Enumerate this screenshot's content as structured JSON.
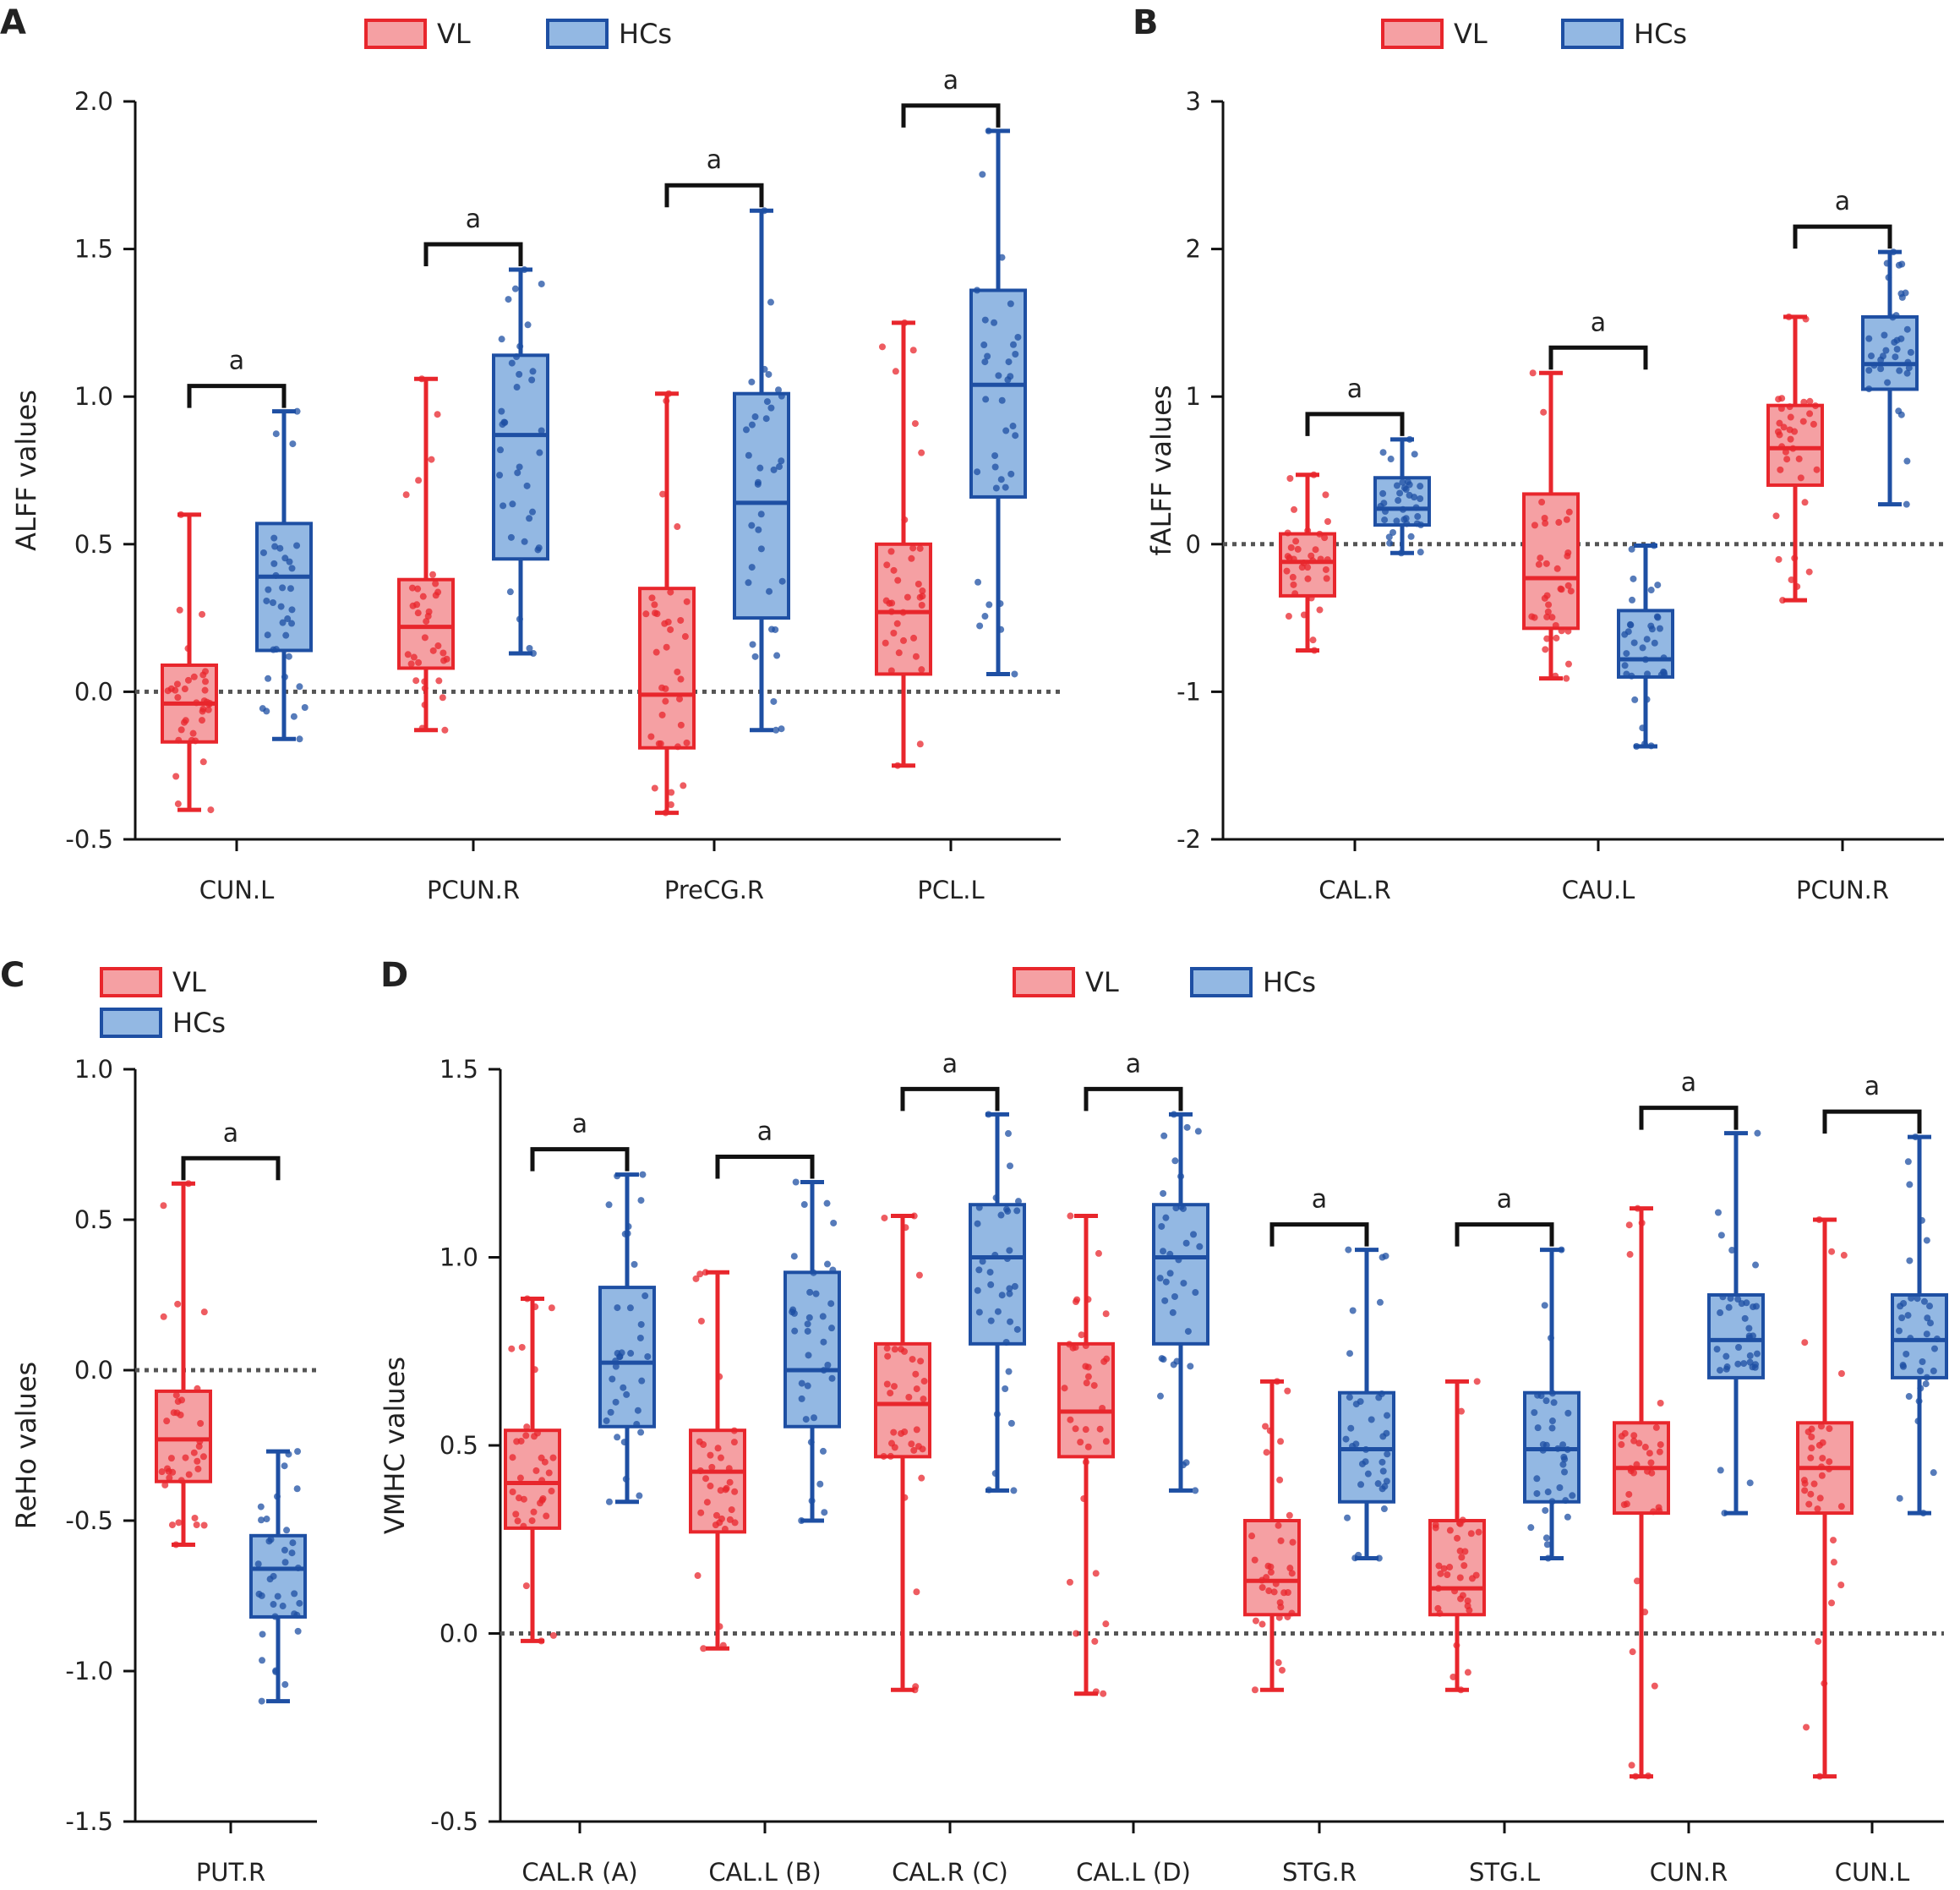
{
  "colors": {
    "vl_stroke": "#e8262c",
    "vl_fill": "#f5a0a3",
    "vl_point": "#e8262c",
    "hc_stroke": "#1e4fa3",
    "hc_fill": "#93b8e3",
    "hc_point": "#1e4fa3",
    "axis": "#111111",
    "zero_line": "#555555"
  },
  "chart_data": [
    {
      "panel": "A",
      "type": "box",
      "ylabel": "ALFF values",
      "ylim": [
        -0.5,
        2.0
      ],
      "yticks": [
        -0.5,
        0.0,
        0.5,
        1.0,
        1.5,
        2.0
      ],
      "ytick_labels": [
        "-0.5",
        "0.0",
        "0.5",
        "1.0",
        "1.5",
        "2.0"
      ],
      "zero_line": true,
      "legend": "top",
      "legend_labels": [
        "VL",
        "HCs"
      ],
      "series_names": [
        "VL",
        "HCs"
      ],
      "categories": [
        "CUN.L",
        "PCUN.R",
        "PreCG.R",
        "PCL.L"
      ],
      "significance": [
        "a",
        "a",
        "a",
        "a"
      ],
      "boxes": [
        [
          {
            "min": -0.4,
            "q1": -0.17,
            "median": -0.04,
            "q3": 0.09,
            "max": 0.6
          },
          {
            "min": -0.16,
            "q1": 0.14,
            "median": 0.39,
            "q3": 0.57,
            "max": 0.95
          }
        ],
        [
          {
            "min": -0.13,
            "q1": 0.08,
            "median": 0.22,
            "q3": 0.38,
            "max": 1.06
          },
          {
            "min": 0.13,
            "q1": 0.45,
            "median": 0.87,
            "q3": 1.14,
            "max": 1.43
          }
        ],
        [
          {
            "min": -0.41,
            "q1": -0.19,
            "median": -0.01,
            "q3": 0.35,
            "max": 1.01
          },
          {
            "min": -0.13,
            "q1": 0.25,
            "median": 0.64,
            "q3": 1.01,
            "max": 1.63
          }
        ],
        [
          {
            "min": -0.25,
            "q1": 0.06,
            "median": 0.27,
            "q3": 0.5,
            "max": 1.25
          },
          {
            "min": 0.06,
            "q1": 0.66,
            "median": 1.04,
            "q3": 1.36,
            "max": 1.9
          }
        ]
      ]
    },
    {
      "panel": "B",
      "type": "box",
      "ylabel": "fALFF values",
      "ylim": [
        -2,
        3
      ],
      "yticks": [
        -2,
        -1,
        0,
        1,
        2,
        3
      ],
      "ytick_labels": [
        "-2",
        "-1",
        "0",
        "1",
        "2",
        "3"
      ],
      "zero_line": true,
      "legend": "top",
      "legend_labels": [
        "VL",
        "HCs"
      ],
      "series_names": [
        "VL",
        "HCs"
      ],
      "categories": [
        "CAL.R",
        "CAU.L",
        "PCUN.R"
      ],
      "significance": [
        "a",
        "a",
        "a"
      ],
      "boxes": [
        [
          {
            "min": -0.72,
            "q1": -0.35,
            "median": -0.12,
            "q3": 0.07,
            "max": 0.47
          },
          {
            "min": -0.06,
            "q1": 0.13,
            "median": 0.24,
            "q3": 0.45,
            "max": 0.71
          }
        ],
        [
          {
            "min": -0.91,
            "q1": -0.57,
            "median": -0.23,
            "q3": 0.34,
            "max": 1.16
          },
          {
            "min": -1.37,
            "q1": -0.9,
            "median": -0.78,
            "q3": -0.45,
            "max": -0.01
          }
        ],
        [
          {
            "min": -0.38,
            "q1": 0.4,
            "median": 0.65,
            "q3": 0.94,
            "max": 1.54
          },
          {
            "min": 0.27,
            "q1": 1.05,
            "median": 1.22,
            "q3": 1.54,
            "max": 1.98
          }
        ]
      ]
    },
    {
      "panel": "C",
      "type": "box",
      "ylabel": "ReHo values",
      "ylim": [
        -1.5,
        1.0
      ],
      "yticks": [
        -1.5,
        -1.0,
        -0.5,
        0.0,
        0.5,
        1.0
      ],
      "ytick_labels": [
        "-1.5",
        "-1.0",
        "-0.5",
        "0.0",
        "0.5",
        "1.0"
      ],
      "zero_line": true,
      "legend": "top-left",
      "legend_labels": [
        "VL",
        "HCs"
      ],
      "series_names": [
        "VL",
        "HCs"
      ],
      "categories": [
        "PUT.R"
      ],
      "significance": [
        "a"
      ],
      "boxes": [
        [
          {
            "min": -0.58,
            "q1": -0.37,
            "median": -0.23,
            "q3": -0.07,
            "max": 0.62
          },
          {
            "min": -1.1,
            "q1": -0.82,
            "median": -0.66,
            "q3": -0.55,
            "max": -0.27
          }
        ]
      ]
    },
    {
      "panel": "D",
      "type": "box",
      "ylabel": "VMHC values",
      "ylim": [
        -0.5,
        1.5
      ],
      "yticks": [
        -0.5,
        0.0,
        0.5,
        1.0,
        1.5
      ],
      "ytick_labels": [
        "-0.5",
        "0.0",
        "0.5",
        "1.0",
        "1.5"
      ],
      "zero_line": true,
      "legend": "top",
      "legend_labels": [
        "VL",
        "HCs"
      ],
      "series_names": [
        "VL",
        "HCs"
      ],
      "categories": [
        "CAL.R (A)",
        "CAL.L (B)",
        "CAL.R (C)",
        "CAL.L (D)",
        "STG.R",
        "STG.L",
        "CUN.R",
        "CUN.L"
      ],
      "significance": [
        "a",
        "a",
        "a",
        "a",
        "a",
        "a",
        "a",
        "a"
      ],
      "boxes": [
        [
          {
            "min": -0.02,
            "q1": 0.28,
            "median": 0.4,
            "q3": 0.54,
            "max": 0.89
          },
          {
            "min": 0.35,
            "q1": 0.55,
            "median": 0.72,
            "q3": 0.92,
            "max": 1.22
          }
        ],
        [
          {
            "min": -0.04,
            "q1": 0.27,
            "median": 0.43,
            "q3": 0.54,
            "max": 0.96
          },
          {
            "min": 0.3,
            "q1": 0.55,
            "median": 0.7,
            "q3": 0.96,
            "max": 1.2
          }
        ],
        [
          {
            "min": -0.15,
            "q1": 0.47,
            "median": 0.61,
            "q3": 0.77,
            "max": 1.11
          },
          {
            "min": 0.38,
            "q1": 0.77,
            "median": 1.0,
            "q3": 1.14,
            "max": 1.38
          }
        ],
        [
          {
            "min": -0.16,
            "q1": 0.47,
            "median": 0.59,
            "q3": 0.77,
            "max": 1.11
          },
          {
            "min": 0.38,
            "q1": 0.77,
            "median": 1.0,
            "q3": 1.14,
            "max": 1.38
          }
        ],
        [
          {
            "min": -0.15,
            "q1": 0.05,
            "median": 0.14,
            "q3": 0.3,
            "max": 0.67
          },
          {
            "min": 0.2,
            "q1": 0.35,
            "median": 0.49,
            "q3": 0.64,
            "max": 1.02
          }
        ],
        [
          {
            "min": -0.15,
            "q1": 0.05,
            "median": 0.12,
            "q3": 0.3,
            "max": 0.67
          },
          {
            "min": 0.2,
            "q1": 0.35,
            "median": 0.49,
            "q3": 0.64,
            "max": 1.02
          }
        ],
        [
          {
            "min": -0.38,
            "q1": 0.32,
            "median": 0.44,
            "q3": 0.56,
            "max": 1.13
          },
          {
            "min": 0.32,
            "q1": 0.68,
            "median": 0.78,
            "q3": 0.9,
            "max": 1.33
          }
        ],
        [
          {
            "min": -0.38,
            "q1": 0.32,
            "median": 0.44,
            "q3": 0.56,
            "max": 1.1
          },
          {
            "min": 0.32,
            "q1": 0.68,
            "median": 0.78,
            "q3": 0.9,
            "max": 1.32
          }
        ]
      ]
    }
  ]
}
